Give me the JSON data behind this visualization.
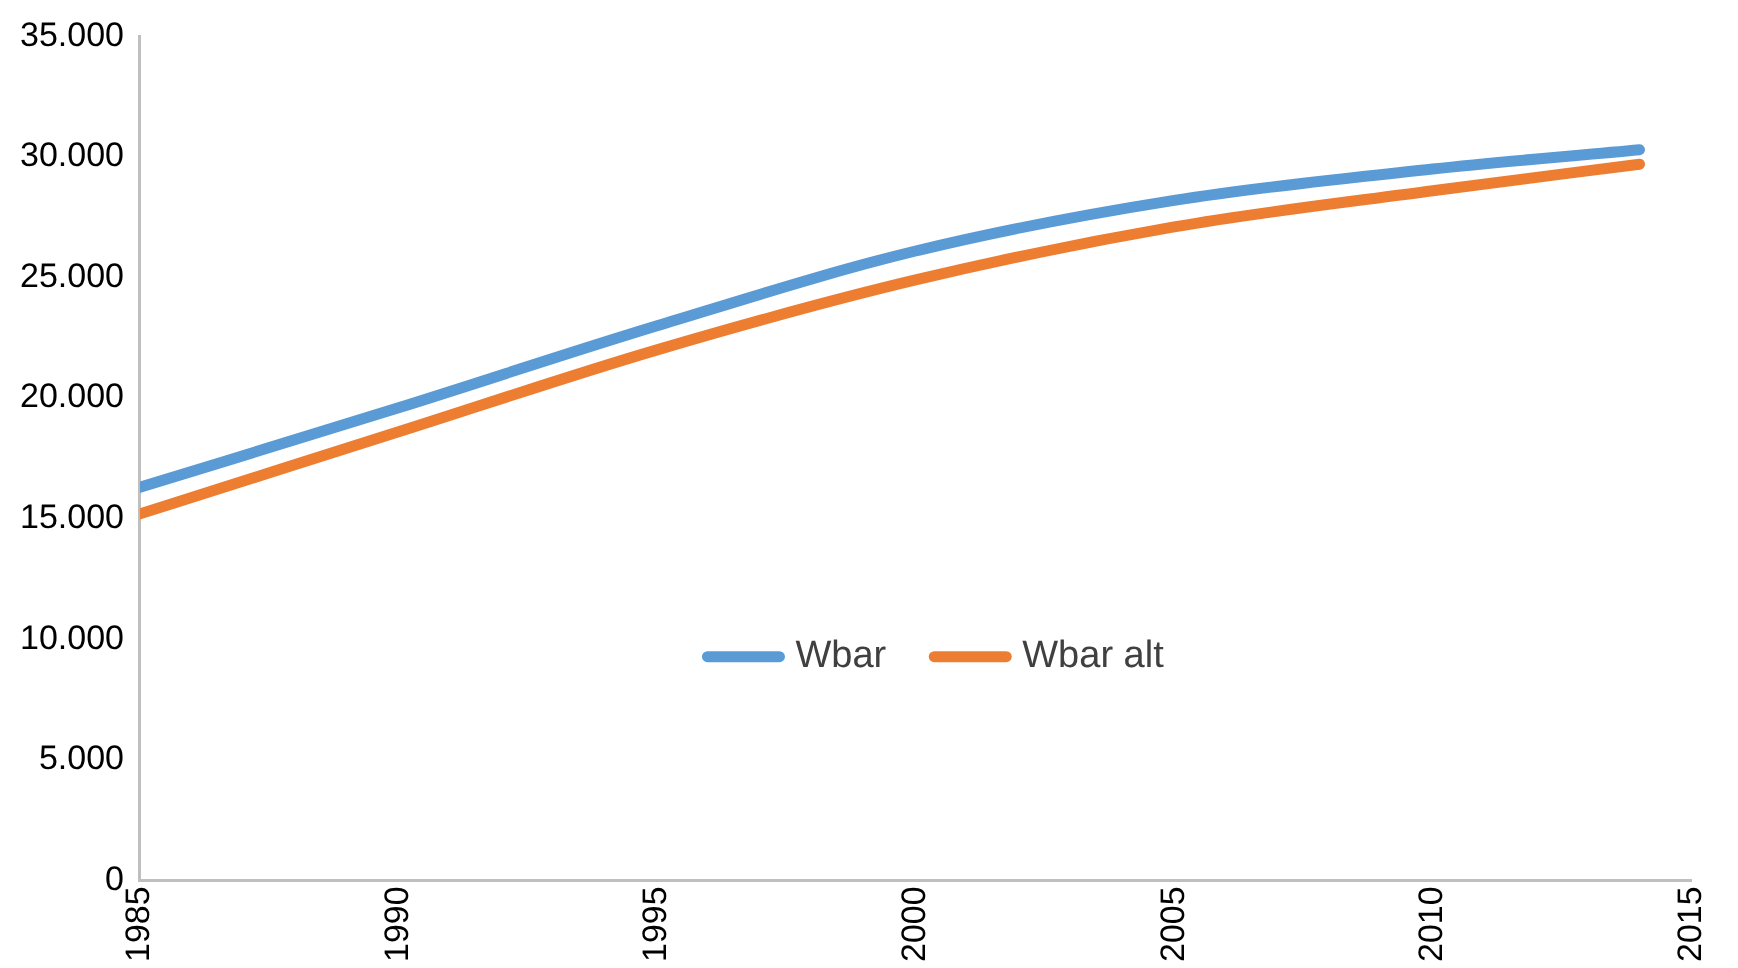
{
  "chart_data": {
    "type": "line",
    "x": [
      1985,
      1990,
      1995,
      2000,
      2005,
      2010,
      2014
    ],
    "series": [
      {
        "name": "Wbar",
        "color": "#5b9bd5",
        "values": [
          16300,
          19600,
          23000,
          26100,
          28200,
          29500,
          30300
        ]
      },
      {
        "name": "Wbar alt",
        "color": "#ed7d31",
        "values": [
          15200,
          18600,
          22000,
          24900,
          27100,
          28600,
          29700
        ]
      }
    ],
    "xlim": [
      1985,
      2015
    ],
    "xticks": [
      1985,
      1990,
      1995,
      2000,
      2005,
      2010,
      2015
    ],
    "ylim": [
      0,
      35000
    ],
    "yticks": [
      0,
      {
        "value": 5000,
        "label": "5.000"
      },
      {
        "value": 10000,
        "label": "10.000"
      },
      {
        "value": 15000,
        "label": "15.000"
      },
      {
        "value": 20000,
        "label": "20.000"
      },
      {
        "value": 25000,
        "label": "25.000"
      },
      {
        "value": 30000,
        "label": "30.000"
      },
      {
        "value": 35000,
        "label": "35.000"
      }
    ],
    "grid": false,
    "legend": "center",
    "marker": "none",
    "line_style": "solid"
  }
}
